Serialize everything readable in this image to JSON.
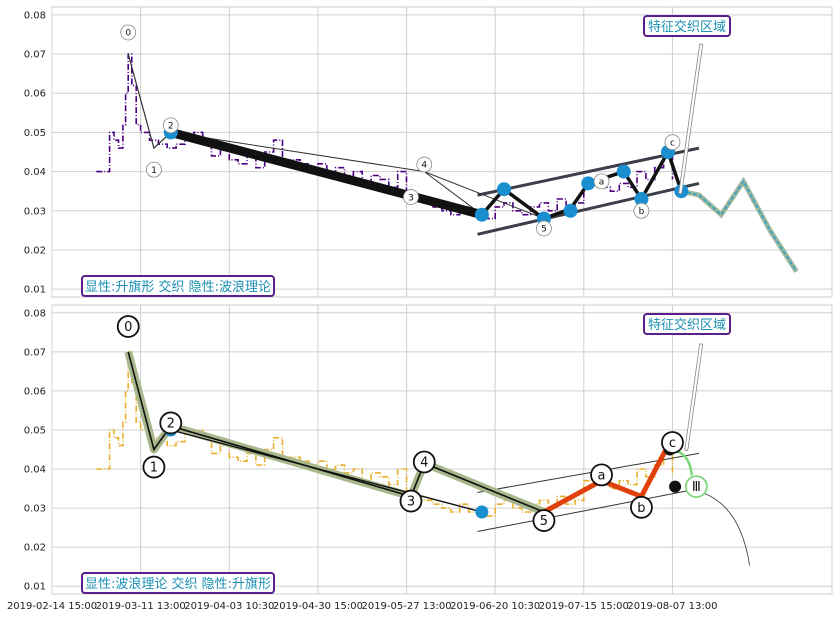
{
  "chart_data": [
    {
      "type": "line",
      "panel": "top",
      "ylim": [
        0.008,
        0.082
      ],
      "yticks": [
        0.01,
        0.02,
        0.03,
        0.04,
        0.05,
        0.06,
        0.07,
        0.08
      ],
      "ytick_labels": [
        "0.01",
        "0.02",
        "0.03",
        "0.04",
        "0.05",
        "0.06",
        "0.07",
        "0.08"
      ],
      "grid": true,
      "colors": {
        "price": "#4b0082",
        "wave": "#111111",
        "channel": "#3b3f4a",
        "box": "#5a1f8a",
        "box_text": "#1a8fb3",
        "point": "#1a8fd0",
        "subwave": "#e07a5f"
      },
      "title_box": {
        "text": "特征交织区域"
      },
      "label_box": {
        "text": "显性:升旗形 交织 隐性:波浪理论"
      },
      "price": [
        [
          0,
          0.04
        ],
        [
          1,
          0.04
        ],
        [
          1.5,
          0.05
        ],
        [
          2,
          0.048
        ],
        [
          2.5,
          0.046
        ],
        [
          3,
          0.052
        ],
        [
          3.3,
          0.06
        ],
        [
          3.6,
          0.07
        ],
        [
          4,
          0.062
        ],
        [
          4.5,
          0.052
        ],
        [
          5,
          0.05
        ],
        [
          6,
          0.048
        ],
        [
          7,
          0.047
        ],
        [
          8,
          0.046
        ],
        [
          9,
          0.047
        ],
        [
          10,
          0.049
        ],
        [
          11,
          0.05
        ],
        [
          12,
          0.048
        ],
        [
          13,
          0.044
        ],
        [
          14,
          0.046
        ],
        [
          15,
          0.043
        ],
        [
          16,
          0.042
        ],
        [
          17,
          0.044
        ],
        [
          18,
          0.041
        ],
        [
          19,
          0.045
        ],
        [
          20,
          0.048
        ],
        [
          21,
          0.043
        ],
        [
          22,
          0.043
        ],
        [
          23,
          0.042
        ],
        [
          24,
          0.041
        ],
        [
          25,
          0.042
        ],
        [
          26,
          0.04
        ],
        [
          27,
          0.041
        ],
        [
          28,
          0.039
        ],
        [
          29,
          0.04
        ],
        [
          30,
          0.037
        ],
        [
          31,
          0.039
        ],
        [
          32,
          0.038
        ],
        [
          33,
          0.036
        ],
        [
          34,
          0.04
        ],
        [
          35,
          0.034
        ],
        [
          36,
          0.033
        ],
        [
          37,
          0.032
        ],
        [
          38,
          0.031
        ],
        [
          39,
          0.03
        ],
        [
          40,
          0.029
        ],
        [
          41,
          0.031
        ],
        [
          42,
          0.029
        ],
        [
          43,
          0.03
        ],
        [
          44,
          0.028
        ],
        [
          45,
          0.031
        ],
        [
          46,
          0.032
        ],
        [
          47,
          0.03
        ],
        [
          48,
          0.029
        ],
        [
          49,
          0.031
        ],
        [
          50,
          0.032
        ],
        [
          51,
          0.03
        ],
        [
          52,
          0.033
        ],
        [
          53,
          0.031
        ],
        [
          54,
          0.032
        ],
        [
          55,
          0.037
        ],
        [
          56,
          0.038
        ],
        [
          57,
          0.036
        ],
        [
          58,
          0.035
        ],
        [
          59,
          0.037
        ],
        [
          60,
          0.036
        ],
        [
          61,
          0.04
        ],
        [
          62,
          0.038
        ],
        [
          63,
          0.041
        ],
        [
          64,
          0.044
        ],
        [
          65,
          0.038
        ]
      ],
      "wave_main": [
        [
          3.6,
          0.07
        ],
        [
          6.5,
          0.046
        ],
        [
          8.4,
          0.05
        ],
        [
          43.5,
          0.029
        ]
      ],
      "wave_thin": [
        [
          37,
          0.04
        ],
        [
          43.5,
          0.029
        ]
      ],
      "wave_thin2": [
        [
          8.4,
          0.05
        ],
        [
          37,
          0.04
        ],
        [
          50.5,
          0.028
        ]
      ],
      "wave_sub": [
        [
          43.5,
          0.029
        ],
        [
          46,
          0.0355
        ],
        [
          50.5,
          0.028
        ],
        [
          53.5,
          0.0305
        ],
        [
          55.5,
          0.037
        ],
        [
          59.5,
          0.04
        ],
        [
          61.5,
          0.033
        ],
        [
          64.5,
          0.045
        ],
        [
          66,
          0.035
        ]
      ],
      "projection": [
        [
          66,
          0.035
        ],
        [
          68,
          0.034
        ],
        [
          70.5,
          0.029
        ],
        [
          73,
          0.0375
        ],
        [
          76,
          0.025
        ],
        [
          79,
          0.0145
        ]
      ],
      "channel_upper": [
        [
          43,
          0.034
        ],
        [
          68,
          0.046
        ]
      ],
      "channel_lower": [
        [
          43,
          0.024
        ],
        [
          68,
          0.037
        ]
      ],
      "points": [
        [
          43.5,
          0.029
        ],
        [
          46,
          0.0355
        ],
        [
          50.5,
          0.028
        ],
        [
          55.5,
          0.037
        ],
        [
          53.5,
          0.03
        ],
        [
          59.5,
          0.04
        ],
        [
          61.5,
          0.033
        ],
        [
          64.5,
          0.045
        ],
        [
          66,
          0.035
        ],
        [
          8.4,
          0.05
        ]
      ],
      "wave_labels": [
        {
          "text": "0",
          "x": 3.6,
          "y": 0.0755
        },
        {
          "text": "1",
          "x": 6.5,
          "y": 0.0405
        },
        {
          "text": "2",
          "x": 8.4,
          "y": 0.0518
        },
        {
          "text": "3",
          "x": 35.5,
          "y": 0.0335
        },
        {
          "text": "4",
          "x": 37,
          "y": 0.0418
        },
        {
          "text": "5",
          "x": 50.5,
          "y": 0.0255
        },
        {
          "text": "a",
          "x": 57,
          "y": 0.0375
        },
        {
          "text": "b",
          "x": 61.5,
          "y": 0.03
        },
        {
          "text": "c",
          "x": 65,
          "y": 0.0475
        }
      ]
    },
    {
      "type": "line",
      "panel": "bottom",
      "ylim": [
        0.008,
        0.082
      ],
      "yticks": [
        0.01,
        0.02,
        0.03,
        0.04,
        0.05,
        0.06,
        0.07,
        0.08
      ],
      "ytick_labels": [
        "0.01",
        "0.02",
        "0.03",
        "0.04",
        "0.05",
        "0.06",
        "0.07",
        "0.08"
      ],
      "grid": true,
      "colors": {
        "price": "#e8b030",
        "wave": "#111111",
        "halo": "#a9b88c",
        "trend": "#e0400a",
        "box": "#5a1f8a",
        "box_text": "#1a8fb3",
        "point": "#1a8fd0",
        "green": "#7dd87d"
      },
      "title_box": {
        "text": "特征交织区域"
      },
      "label_box": {
        "text": "显性:波浪理论 交织 隐性:升旗形"
      },
      "price": [
        [
          0,
          0.04
        ],
        [
          1,
          0.04
        ],
        [
          1.5,
          0.05
        ],
        [
          2,
          0.048
        ],
        [
          2.5,
          0.046
        ],
        [
          3,
          0.052
        ],
        [
          3.3,
          0.06
        ],
        [
          3.6,
          0.07
        ],
        [
          4,
          0.062
        ],
        [
          4.5,
          0.052
        ],
        [
          5,
          0.05
        ],
        [
          6,
          0.048
        ],
        [
          7,
          0.047
        ],
        [
          8,
          0.046
        ],
        [
          9,
          0.047
        ],
        [
          10,
          0.049
        ],
        [
          11,
          0.05
        ],
        [
          12,
          0.048
        ],
        [
          13,
          0.044
        ],
        [
          14,
          0.046
        ],
        [
          15,
          0.043
        ],
        [
          16,
          0.042
        ],
        [
          17,
          0.044
        ],
        [
          18,
          0.041
        ],
        [
          19,
          0.045
        ],
        [
          20,
          0.048
        ],
        [
          21,
          0.043
        ],
        [
          22,
          0.043
        ],
        [
          23,
          0.042
        ],
        [
          24,
          0.041
        ],
        [
          25,
          0.042
        ],
        [
          26,
          0.04
        ],
        [
          27,
          0.041
        ],
        [
          28,
          0.039
        ],
        [
          29,
          0.04
        ],
        [
          30,
          0.037
        ],
        [
          31,
          0.039
        ],
        [
          32,
          0.038
        ],
        [
          33,
          0.036
        ],
        [
          34,
          0.04
        ],
        [
          35,
          0.034
        ],
        [
          36,
          0.033
        ],
        [
          37,
          0.032
        ],
        [
          38,
          0.031
        ],
        [
          39,
          0.03
        ],
        [
          40,
          0.029
        ],
        [
          41,
          0.031
        ],
        [
          42,
          0.029
        ],
        [
          43,
          0.03
        ],
        [
          44,
          0.028
        ],
        [
          45,
          0.031
        ],
        [
          46,
          0.032
        ],
        [
          47,
          0.03
        ],
        [
          48,
          0.029
        ],
        [
          49,
          0.031
        ],
        [
          50,
          0.032
        ],
        [
          51,
          0.03
        ],
        [
          52,
          0.033
        ],
        [
          53,
          0.031
        ],
        [
          54,
          0.032
        ],
        [
          55,
          0.037
        ],
        [
          56,
          0.038
        ],
        [
          57,
          0.036
        ],
        [
          58,
          0.035
        ],
        [
          59,
          0.037
        ],
        [
          60,
          0.036
        ],
        [
          61,
          0.04
        ],
        [
          62,
          0.038
        ],
        [
          63,
          0.041
        ],
        [
          64,
          0.044
        ],
        [
          65,
          0.038
        ]
      ],
      "wave_main": [
        [
          3.6,
          0.07
        ],
        [
          6.5,
          0.045
        ],
        [
          8.4,
          0.051
        ],
        [
          35.5,
          0.033
        ],
        [
          37,
          0.0415
        ],
        [
          50.5,
          0.029
        ]
      ],
      "wave_thin": [
        [
          8.4,
          0.05
        ],
        [
          43.5,
          0.029
        ]
      ],
      "trend": [
        [
          50.5,
          0.029
        ],
        [
          57,
          0.037
        ],
        [
          61.5,
          0.033
        ],
        [
          64.5,
          0.046
        ]
      ],
      "channel_upper": [
        [
          43,
          0.034
        ],
        [
          68,
          0.044
        ]
      ],
      "channel_lower": [
        [
          43,
          0.024
        ],
        [
          68,
          0.035
        ]
      ],
      "points": [
        [
          43.5,
          0.029
        ],
        [
          8.4,
          0.05
        ]
      ],
      "black_points": [
        [
          65.3,
          0.0355
        ],
        [
          64.7,
          0.045
        ]
      ],
      "wave_labels": [
        {
          "text": "0",
          "x": 3.6,
          "y": 0.0765
        },
        {
          "text": "1",
          "x": 6.5,
          "y": 0.0405
        },
        {
          "text": "2",
          "x": 8.4,
          "y": 0.0518
        },
        {
          "text": "3",
          "x": 35.5,
          "y": 0.0318
        },
        {
          "text": "4",
          "x": 37,
          "y": 0.0418
        },
        {
          "text": "5",
          "x": 50.5,
          "y": 0.0268
        },
        {
          "text": "a",
          "x": 57,
          "y": 0.0385
        },
        {
          "text": "b",
          "x": 61.5,
          "y": 0.0302
        },
        {
          "text": "c",
          "x": 65,
          "y": 0.0468
        },
        {
          "text": "Ⅲ",
          "x": 67.7,
          "y": 0.0355
        }
      ]
    }
  ],
  "x_axis": {
    "xlim": [
      -5,
      83
    ],
    "ticks": [
      -5,
      5,
      15,
      25,
      35,
      45,
      55,
      65
    ],
    "labels": [
      "2019-02-14 15:00",
      "2019-03-11 13:00",
      "2019-04-03 10:30",
      "2019-04-30 15:00",
      "2019-05-27 13:00",
      "2019-06-20 10:30",
      "2019-07-15 15:00",
      "2019-08-07 13:00"
    ]
  }
}
